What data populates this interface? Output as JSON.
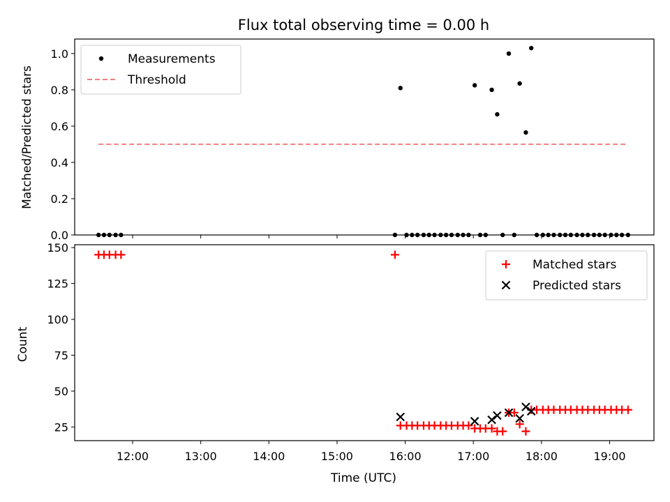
{
  "chart_data": [
    {
      "type": "scatter",
      "title": "Flux total observing time = 0.00 h",
      "ylabel": "Matched/Predicted stars",
      "ylim": [
        0.0,
        1.08
      ],
      "yticks": [
        0.0,
        0.2,
        0.4,
        0.6,
        0.8,
        1.0
      ],
      "ytick_labels": [
        "0.0",
        "0.2",
        "0.4",
        "0.6",
        "0.8",
        "1.0"
      ],
      "xlim": [
        11.15,
        19.65
      ],
      "xticks": [
        12,
        13,
        14,
        15,
        16,
        17,
        18,
        19
      ],
      "legend": {
        "placement": "upper-left"
      },
      "grid": false,
      "series": [
        {
          "name": "Measurements",
          "kind": "scatter",
          "marker": "dot",
          "color": "#000000",
          "x": [
            11.5,
            11.58,
            11.66,
            11.75,
            11.83,
            15.85,
            15.93,
            16.02,
            16.1,
            16.18,
            16.27,
            16.35,
            16.43,
            16.52,
            16.6,
            16.68,
            16.77,
            16.85,
            16.93,
            17.02,
            17.1,
            17.18,
            17.27,
            17.35,
            17.43,
            17.52,
            17.6,
            17.68,
            17.77,
            17.85,
            17.93,
            18.02,
            18.1,
            18.18,
            18.27,
            18.35,
            18.43,
            18.52,
            18.6,
            18.68,
            18.77,
            18.85,
            18.93,
            19.02,
            19.1,
            19.18,
            19.27
          ],
          "y": [
            0,
            0,
            0,
            0,
            0,
            0,
            0.81,
            0,
            0,
            0,
            0,
            0,
            0,
            0,
            0,
            0,
            0,
            0,
            0,
            0.825,
            0,
            0,
            0.8,
            0.665,
            0,
            1.0,
            0,
            0.835,
            0.565,
            1.03,
            0,
            0,
            0,
            0,
            0,
            0,
            0,
            0,
            0,
            0,
            0,
            0,
            0,
            0,
            0,
            0,
            0
          ]
        },
        {
          "name": "Threshold",
          "kind": "line",
          "linestyle": "dashed",
          "color": "#f08080",
          "x": [
            11.5,
            19.27
          ],
          "y": [
            0.5,
            0.5
          ]
        }
      ]
    },
    {
      "type": "scatter",
      "xlabel": "Time (UTC)",
      "ylabel": "Count",
      "ylim": [
        15.5,
        152.0
      ],
      "yticks": [
        25,
        50,
        75,
        100,
        125,
        150
      ],
      "ytick_labels": [
        "25",
        "50",
        "75",
        "100",
        "125",
        "150"
      ],
      "xlim": [
        11.15,
        19.65
      ],
      "xticks": [
        12,
        13,
        14,
        15,
        16,
        17,
        18,
        19
      ],
      "xtick_labels": [
        "12:00",
        "13:00",
        "14:00",
        "15:00",
        "16:00",
        "17:00",
        "18:00",
        "19:00"
      ],
      "legend": {
        "placement": "upper-right"
      },
      "grid": false,
      "series": [
        {
          "name": "Matched stars",
          "kind": "scatter",
          "marker": "plus",
          "color": "#ff0000",
          "x": [
            11.5,
            11.58,
            11.66,
            11.75,
            11.83,
            15.85,
            15.93,
            16.02,
            16.1,
            16.18,
            16.27,
            16.35,
            16.43,
            16.52,
            16.6,
            16.68,
            16.77,
            16.85,
            16.93,
            17.02,
            17.1,
            17.18,
            17.27,
            17.35,
            17.43,
            17.52,
            17.6,
            17.68,
            17.77,
            17.85,
            17.93,
            18.02,
            18.1,
            18.18,
            18.27,
            18.35,
            18.43,
            18.52,
            18.6,
            18.68,
            18.77,
            18.85,
            18.93,
            19.02,
            19.1,
            19.18,
            19.27
          ],
          "y": [
            145,
            145,
            145,
            145,
            145,
            145,
            26,
            26,
            26,
            26,
            26,
            26,
            26,
            26,
            26,
            26,
            26,
            26,
            26,
            24,
            24,
            24,
            24,
            22,
            22,
            35,
            35,
            27,
            22,
            37,
            37,
            37,
            37,
            37,
            37,
            37,
            37,
            37,
            37,
            37,
            37,
            37,
            37,
            37,
            37,
            37,
            37
          ]
        },
        {
          "name": "Predicted stars",
          "kind": "scatter",
          "marker": "x",
          "color": "#000000",
          "x": [
            15.93,
            17.02,
            17.27,
            17.35,
            17.52,
            17.68,
            17.77,
            17.85
          ],
          "y": [
            32,
            29,
            30,
            33,
            35,
            31,
            39,
            36
          ]
        }
      ]
    }
  ]
}
